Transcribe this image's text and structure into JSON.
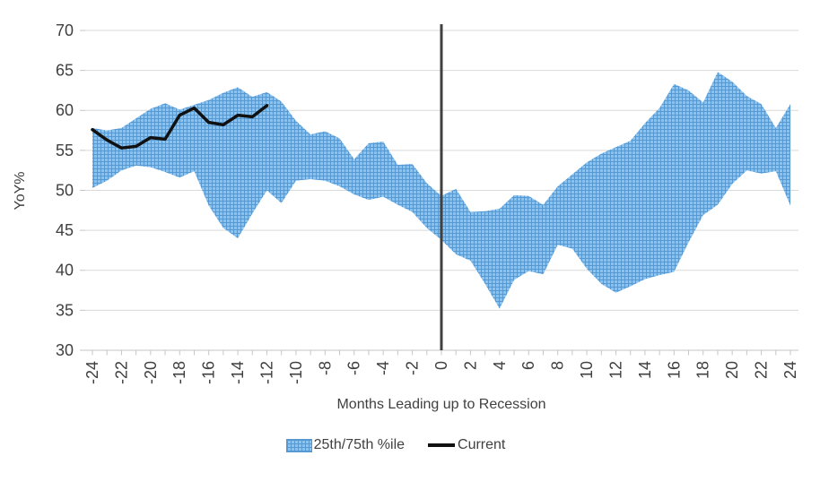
{
  "colors": {
    "band_base": "#8FC2E9",
    "band_grid": "#5598D2",
    "current_line": "#111111",
    "zero_line": "#404040",
    "gridline": "#D9D9D9",
    "axis": "#C6C6C6",
    "text": "#404040"
  },
  "legend": {
    "band_label": "25th/75th %ile",
    "current_label": "Current"
  },
  "chart_data": {
    "type": "area",
    "title": "",
    "xlabel": "Months Leading up to Recession",
    "ylabel": "YoY%",
    "xlim": [
      -24,
      24
    ],
    "ylim": [
      30,
      70
    ],
    "grid": true,
    "legend_position": "bottom",
    "x_ticks": [
      -24,
      -22,
      -20,
      -18,
      -16,
      -14,
      -12,
      -10,
      -8,
      -6,
      -4,
      -2,
      0,
      2,
      4,
      6,
      8,
      10,
      12,
      14,
      16,
      18,
      20,
      22,
      24
    ],
    "y_ticks": [
      30,
      35,
      40,
      45,
      50,
      55,
      60,
      65,
      70
    ],
    "zero_line_x": 0,
    "x": [
      -24,
      -23,
      -22,
      -21,
      -20,
      -19,
      -18,
      -17,
      -16,
      -15,
      -14,
      -13,
      -12,
      -11,
      -10,
      -9,
      -8,
      -7,
      -6,
      -5,
      -4,
      -3,
      -2,
      -1,
      0,
      1,
      2,
      3,
      4,
      5,
      6,
      7,
      8,
      9,
      10,
      11,
      12,
      13,
      14,
      15,
      16,
      17,
      18,
      19,
      20,
      21,
      22,
      23,
      24
    ],
    "series": [
      {
        "name": "25th/75th %ile",
        "type": "band",
        "upper": [
          57.8,
          57.5,
          57.8,
          59.0,
          60.2,
          60.9,
          60.1,
          60.7,
          61.3,
          62.2,
          62.9,
          61.7,
          62.3,
          61.1,
          58.7,
          57.0,
          57.4,
          56.5,
          53.9,
          55.9,
          56.1,
          53.2,
          53.3,
          50.9,
          49.3,
          50.2,
          47.3,
          47.4,
          47.7,
          49.4,
          49.3,
          48.2,
          50.5,
          52.0,
          53.5,
          54.6,
          55.4,
          56.2,
          58.4,
          60.3,
          63.3,
          62.5,
          61.0,
          64.8,
          63.6,
          61.8,
          60.8,
          57.8,
          60.8
        ],
        "lower": [
          50.3,
          51.2,
          52.5,
          53.1,
          52.9,
          52.3,
          51.6,
          52.4,
          48.1,
          45.3,
          44.0,
          47.1,
          50.0,
          48.4,
          51.2,
          51.4,
          51.2,
          50.5,
          49.5,
          48.8,
          49.2,
          48.2,
          47.3,
          45.3,
          43.8,
          42.0,
          41.2,
          38.3,
          35.2,
          38.8,
          39.9,
          39.5,
          43.2,
          42.7,
          40.2,
          38.3,
          37.2,
          38.0,
          38.9,
          39.4,
          39.8,
          43.5,
          46.9,
          48.2,
          50.8,
          52.5,
          52.1,
          52.4,
          48.1
        ]
      },
      {
        "name": "Current",
        "type": "line",
        "x": [
          -24,
          -23,
          -22,
          -21,
          -20,
          -19,
          -18,
          -17,
          -16,
          -15,
          -14,
          -13,
          -12
        ],
        "values": [
          57.6,
          56.3,
          55.3,
          55.5,
          56.6,
          56.4,
          59.4,
          60.3,
          58.5,
          58.2,
          59.4,
          59.2,
          60.6
        ]
      }
    ]
  }
}
